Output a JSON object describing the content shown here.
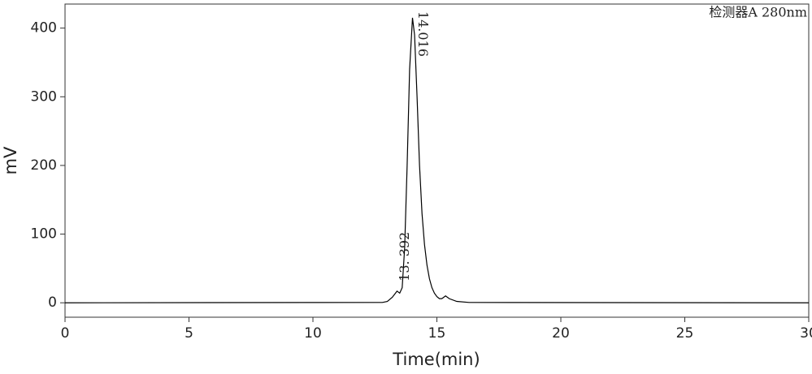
{
  "chart_data": {
    "type": "line",
    "title": "检测器A 280nm",
    "x_label": "Time(min)",
    "y_label": "mV",
    "xlim": [
      0,
      30
    ],
    "ylim": [
      -21,
      435
    ],
    "xticks": [
      0,
      5,
      10,
      15,
      20,
      25,
      30
    ],
    "yticks": [
      0,
      100,
      200,
      300,
      400
    ],
    "x": [
      0,
      12.8,
      13.0,
      13.2,
      13.392,
      13.5,
      13.6,
      13.7,
      13.8,
      13.9,
      14.016,
      14.1,
      14.2,
      14.3,
      14.4,
      14.5,
      14.6,
      14.7,
      14.8,
      14.9,
      15.0,
      15.1,
      15.2,
      15.35,
      15.5,
      15.8,
      16.3,
      30
    ],
    "series": [
      {
        "color": "#000000",
        "values": [
          0,
          0.5,
          2,
          8,
          17,
          14,
          22,
          80,
          200,
          340,
          415,
          390,
          300,
          200,
          130,
          85,
          55,
          35,
          22,
          14,
          9,
          6,
          6,
          10,
          6,
          2,
          0.5,
          0
        ]
      }
    ],
    "annotations": [
      {
        "text": "13. 392",
        "x": 13.392,
        "y": 17
      },
      {
        "text": "14.016",
        "x": 14.016,
        "y": 415
      }
    ]
  }
}
